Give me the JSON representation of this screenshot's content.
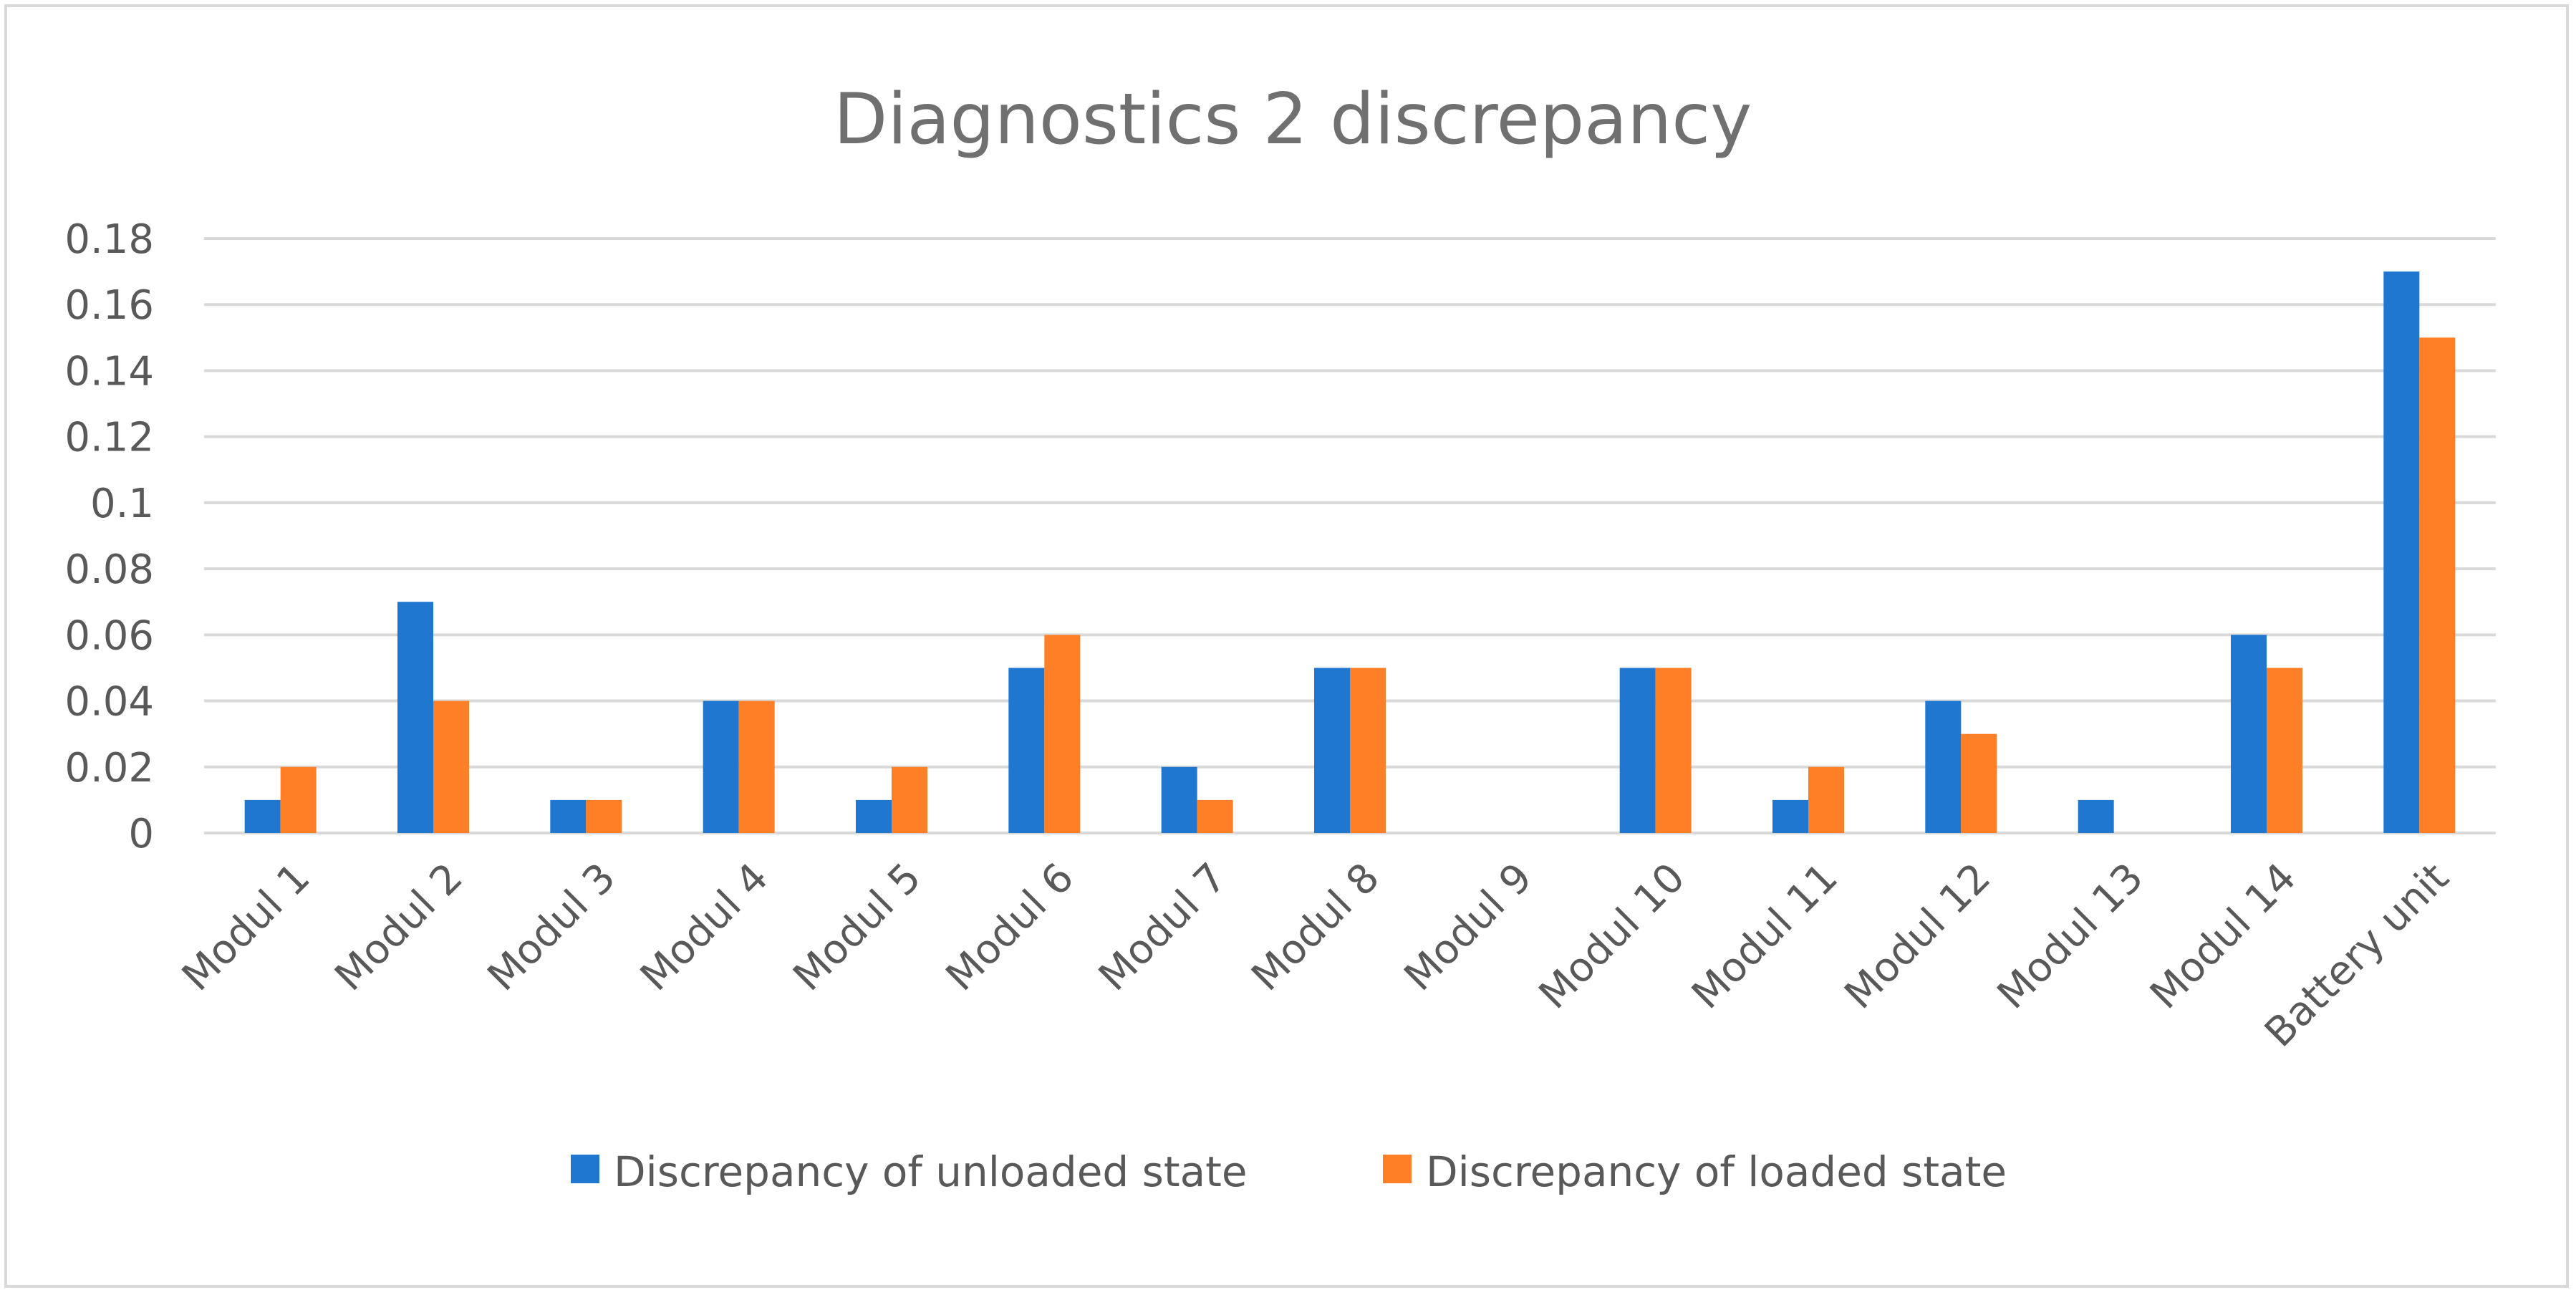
{
  "chart_data": {
    "type": "bar",
    "title": "Diagnostics 2 discrepancy",
    "xlabel": "",
    "ylabel": "",
    "ylim": [
      0,
      0.18
    ],
    "yticks": [
      0,
      0.02,
      0.04,
      0.06,
      0.08,
      0.1,
      0.12,
      0.14,
      0.16,
      0.18
    ],
    "ytick_labels": [
      "0",
      "0.02",
      "0.04",
      "0.06",
      "0.08",
      "0.1",
      "0.12",
      "0.14",
      "0.16",
      "0.18"
    ],
    "grid": true,
    "legend_position": "bottom",
    "categories": [
      "Modul 1",
      "Modul 2",
      "Modul 3",
      "Modul 4",
      "Modul 5",
      "Modul 6",
      "Modul 7",
      "Modul 8",
      "Modul 9",
      "Modul 10",
      "Modul 11",
      "Modul 12",
      "Modul 13",
      "Modul 14",
      "Battery unit"
    ],
    "series": [
      {
        "name": "Discrepancy of unloaded state",
        "color": "#1f77d0",
        "values": [
          0.01,
          0.07,
          0.01,
          0.04,
          0.01,
          0.05,
          0.02,
          0.05,
          0,
          0.05,
          0.01,
          0.04,
          0.01,
          0.06,
          0.17
        ]
      },
      {
        "name": "Discrepancy of loaded state",
        "color": "#ff7f27",
        "values": [
          0.02,
          0.04,
          0.01,
          0.04,
          0.02,
          0.06,
          0.01,
          0.05,
          0,
          0.05,
          0.02,
          0.03,
          0,
          0.05,
          0.15
        ]
      }
    ]
  }
}
